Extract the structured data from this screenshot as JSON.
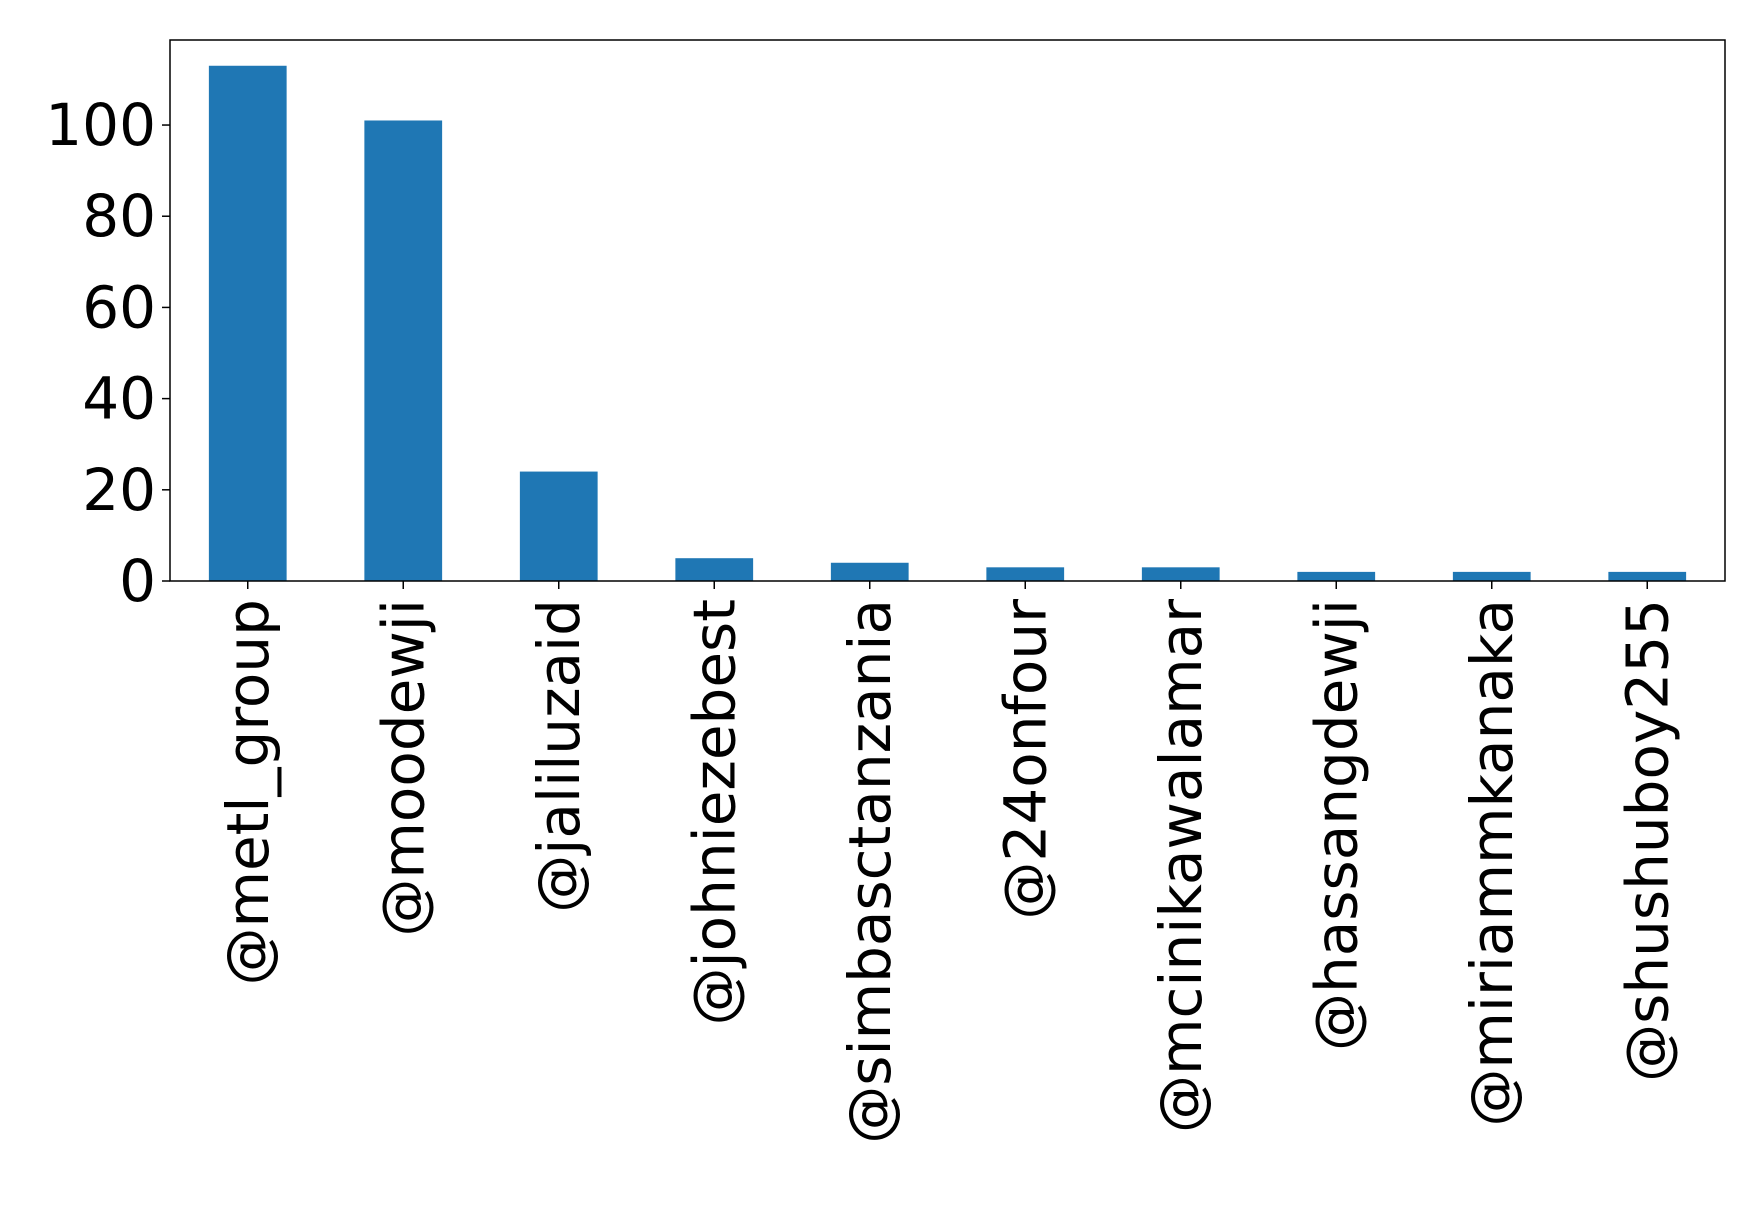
{
  "chart_data": {
    "type": "bar",
    "title": "",
    "xlabel": "",
    "ylabel": "",
    "categories": [
      "@metl_group",
      "@moodewji",
      "@jaliluzaid",
      "@johniezebest",
      "@simbasctanzania",
      "@24onfour",
      "@mcinikawalamar",
      "@hassangdewji",
      "@miriammkanaka",
      "@shushuboy255"
    ],
    "values": [
      113,
      101,
      24,
      5,
      4,
      3,
      3,
      2,
      2,
      2
    ],
    "yticks": [
      0,
      20,
      40,
      60,
      80,
      100
    ],
    "ylim": [
      0,
      118.65
    ],
    "grid": false,
    "legend": "none",
    "bar_color": "#1f77b4"
  }
}
